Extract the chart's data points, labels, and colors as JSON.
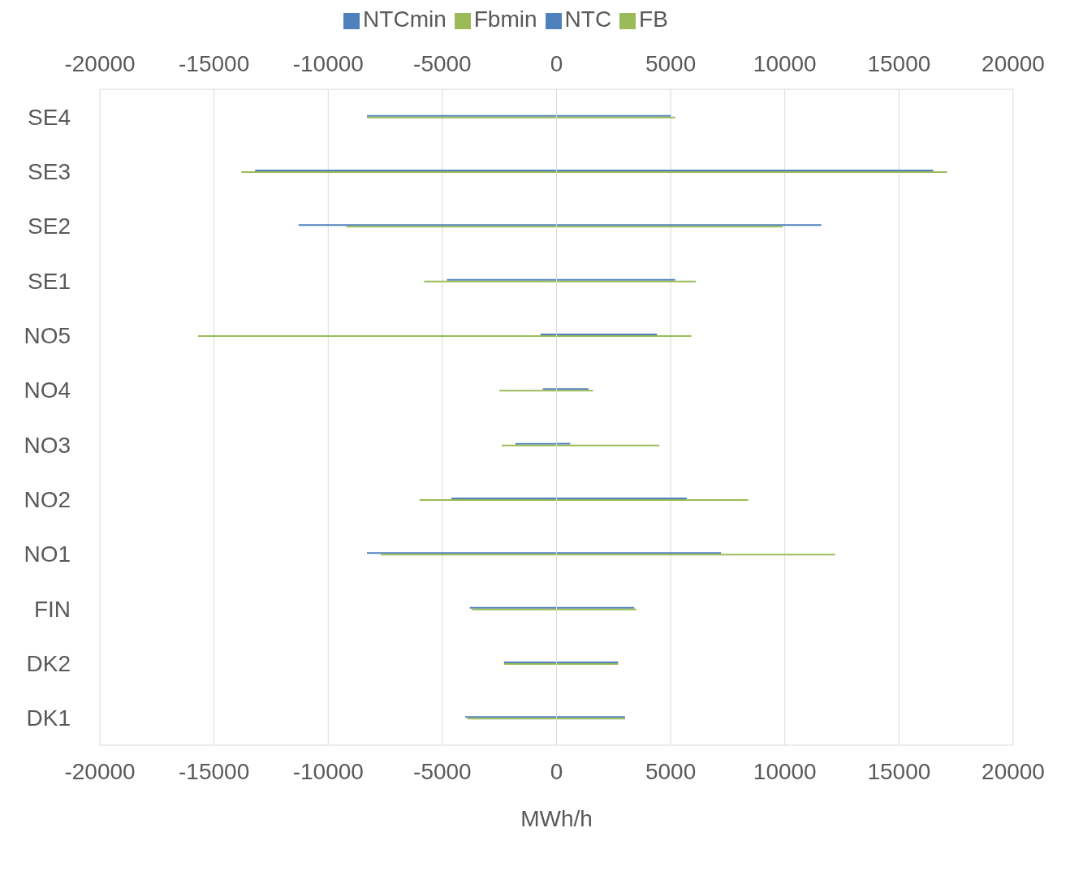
{
  "chart_data": {
    "type": "bar",
    "orientation": "horizontal",
    "xlabel": "MWh/h",
    "categories": [
      "SE4",
      "SE3",
      "SE2",
      "SE1",
      "NO5",
      "NO4",
      "NO3",
      "NO2",
      "NO1",
      "FIN",
      "DK2",
      "DK1"
    ],
    "series": [
      {
        "name": "NTCmin",
        "color": "#4f81bd",
        "values": [
          -8300,
          -13200,
          -11300,
          -4800,
          -700,
          -600,
          -1800,
          -4600,
          -8300,
          -3800,
          -2300,
          -4000
        ]
      },
      {
        "name": "Fbmin",
        "color": "#9bbb59",
        "values": [
          -8300,
          -13800,
          -9200,
          -5800,
          -15700,
          -2500,
          -2400,
          -6000,
          -7700,
          -3700,
          -2300,
          -3900
        ]
      },
      {
        "name": "NTC",
        "color": "#4f81bd",
        "values": [
          5000,
          16500,
          11600,
          5200,
          4400,
          1400,
          600,
          5700,
          7200,
          3400,
          2700,
          3000
        ]
      },
      {
        "name": "FB",
        "color": "#9bbb59",
        "values": [
          5200,
          17100,
          9900,
          6100,
          5900,
          1600,
          4500,
          8400,
          12200,
          3500,
          2700,
          3000
        ]
      }
    ],
    "xlim": [
      -20000,
      20000
    ],
    "xticks": [
      -20000,
      -15000,
      -10000,
      -5000,
      0,
      5000,
      10000,
      15000,
      20000
    ],
    "x2lim": [
      -20000,
      20000
    ],
    "x2ticks": [
      -20000,
      -15000,
      -10000,
      -5000,
      0,
      5000,
      10000,
      15000,
      20000
    ],
    "grid": "x",
    "legend": "top"
  }
}
